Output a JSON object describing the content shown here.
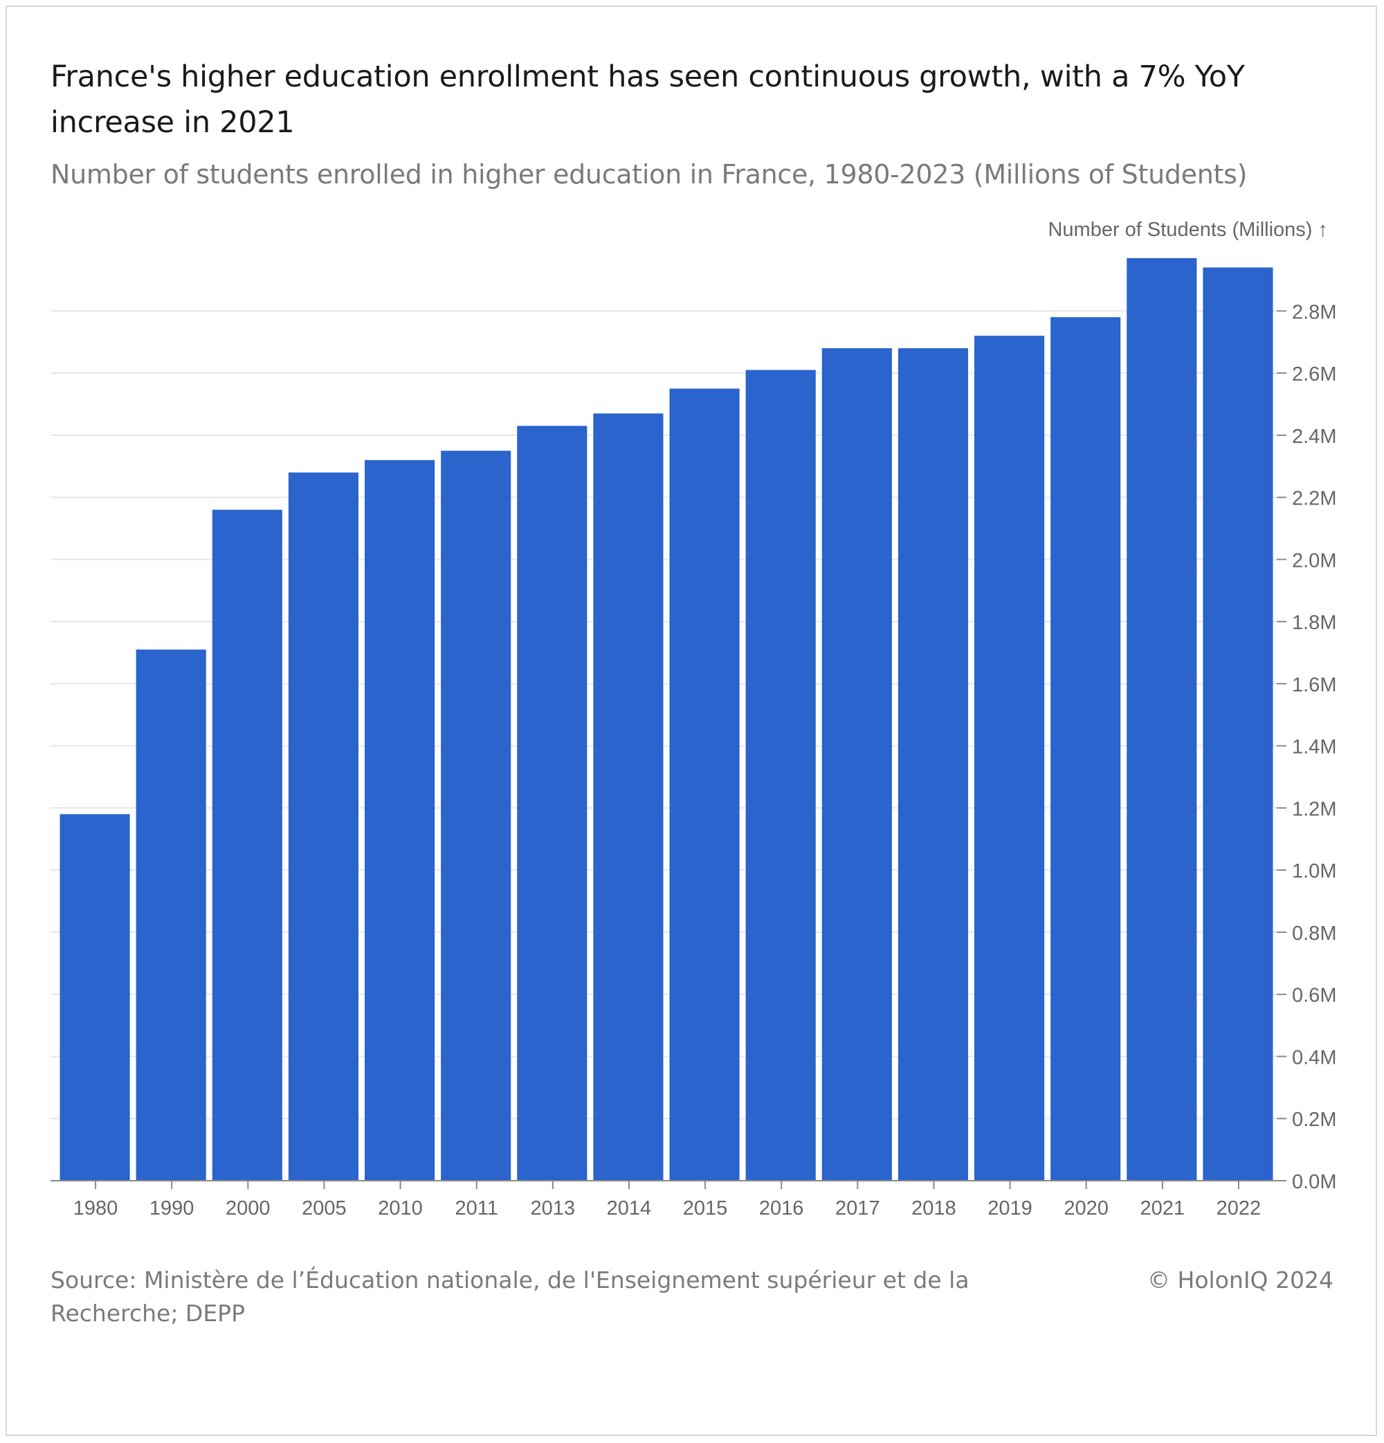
{
  "header": {
    "title": "France's higher education enrollment has seen continuous growth, with a 7% YoY increase in 2021",
    "subtitle": "Number of students enrolled in higher education in France, 1980-2023 (Millions of Students)"
  },
  "footer": {
    "source": "Source: Ministère de l’Éducation nationale, de l'Enseignement supérieur et de la Recherche; DEPP",
    "copyright": "© HolonIQ 2024"
  },
  "colors": {
    "bar": "#2a64cc",
    "grid": "#e6e6e6",
    "axis_text": "#666666"
  },
  "chart_data": {
    "type": "bar",
    "title": "France's higher education enrollment has seen continuous growth, with a 7% YoY increase in 2021",
    "subtitle": "Number of students enrolled in higher education in France, 1980-2023 (Millions of Students)",
    "xlabel": "",
    "ylabel": "Number of Students (Millions) ↑",
    "categories": [
      "1980",
      "1990",
      "2000",
      "2005",
      "2010",
      "2011",
      "2013",
      "2014",
      "2015",
      "2016",
      "2017",
      "2018",
      "2019",
      "2020",
      "2021",
      "2022"
    ],
    "values": [
      1.18,
      1.71,
      2.16,
      2.28,
      2.32,
      2.35,
      2.43,
      2.47,
      2.55,
      2.61,
      2.68,
      2.68,
      2.72,
      2.78,
      2.97,
      2.94
    ],
    "ylim": [
      0,
      2.97
    ],
    "yticks": [
      0,
      0.2,
      0.4,
      0.6,
      0.8,
      1.0,
      1.2,
      1.4,
      1.6,
      1.8,
      2.0,
      2.2,
      2.4,
      2.6,
      2.8
    ],
    "ytick_labels": [
      "0.0M",
      "0.2M",
      "0.4M",
      "0.6M",
      "0.8M",
      "1.0M",
      "1.2M",
      "1.4M",
      "1.6M",
      "1.8M",
      "2.0M",
      "2.2M",
      "2.4M",
      "2.6M",
      "2.8M"
    ],
    "y_axis_side": "right",
    "grid": true,
    "legend": "none"
  }
}
